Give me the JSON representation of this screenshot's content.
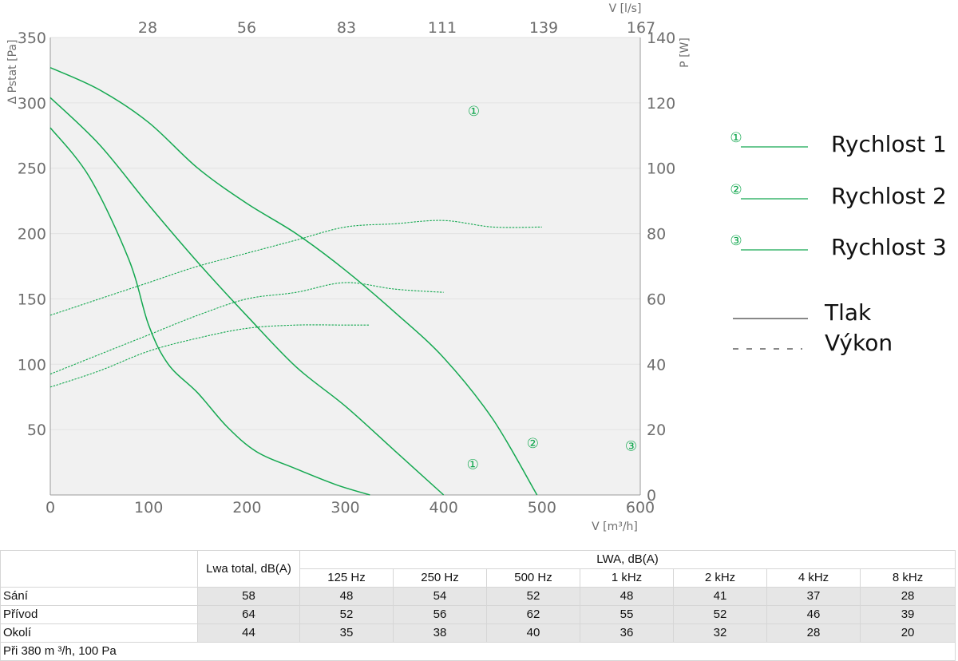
{
  "chart_data": {
    "type": "line",
    "x_axis": {
      "label": "V [m³/h]",
      "range": [
        0,
        600
      ],
      "ticks": [
        0,
        100,
        200,
        300,
        400,
        500,
        600
      ]
    },
    "x2_axis": {
      "label": "V [l/s]",
      "ticks": [
        "28",
        "56",
        "83",
        "111",
        "139",
        "167"
      ]
    },
    "y_axis": {
      "label": "Δ Pstat [Pa]",
      "range": [
        0,
        350
      ],
      "ticks": [
        50,
        100,
        150,
        200,
        250,
        300,
        350
      ]
    },
    "y2_axis": {
      "label": "P [W]",
      "range": [
        0,
        140
      ],
      "ticks": [
        0,
        20,
        40,
        60,
        80,
        100,
        120,
        140
      ]
    },
    "grid": true,
    "plot_background": "#f1f1f1",
    "series_color": "#14a850",
    "series": [
      {
        "name": "Rychlost 1",
        "kind": "pressure",
        "axis": "left",
        "label": "①",
        "x": [
          0,
          40,
          80,
          100,
          120,
          150,
          180,
          210,
          250,
          290,
          325
        ],
        "y": [
          281,
          243,
          180,
          130,
          100,
          78,
          52,
          33,
          20,
          8,
          0
        ]
      },
      {
        "name": "Rychlost 2",
        "kind": "pressure",
        "axis": "left",
        "label": "②",
        "x": [
          0,
          50,
          100,
          150,
          200,
          250,
          300,
          350,
          400
        ],
        "y": [
          304,
          268,
          222,
          178,
          137,
          98,
          68,
          34,
          0
        ]
      },
      {
        "name": "Rychlost 3",
        "kind": "pressure",
        "axis": "left",
        "label": "③",
        "x": [
          0,
          50,
          100,
          150,
          200,
          250,
          300,
          350,
          400,
          450,
          495
        ],
        "y": [
          327,
          310,
          285,
          250,
          223,
          200,
          172,
          140,
          105,
          58,
          0
        ]
      },
      {
        "name": "Rychlost 1",
        "kind": "power",
        "axis": "right",
        "label": "①",
        "x": [
          0,
          50,
          100,
          150,
          200,
          250,
          300,
          325
        ],
        "y": [
          33,
          38,
          44,
          48,
          51,
          52,
          52,
          52
        ]
      },
      {
        "name": "Rychlost 2",
        "kind": "power",
        "axis": "right",
        "label": "②",
        "x": [
          0,
          50,
          100,
          150,
          200,
          250,
          300,
          350,
          400
        ],
        "y": [
          37,
          43,
          49,
          55,
          60,
          62,
          65,
          63,
          62
        ]
      },
      {
        "name": "Rychlost 3",
        "kind": "power",
        "axis": "right",
        "label": "③",
        "x": [
          0,
          50,
          100,
          150,
          200,
          250,
          300,
          350,
          400,
          450,
          500
        ],
        "y": [
          55,
          60,
          65,
          70,
          74,
          78,
          82,
          83,
          84,
          82,
          82
        ]
      }
    ],
    "curve_labels": [
      {
        "text": "①",
        "series": 0,
        "x": 316,
        "y": 20
      },
      {
        "text": "②",
        "series": 1,
        "x": 377,
        "y": 36
      },
      {
        "text": "③",
        "series": 2,
        "x": 477,
        "y": 34
      },
      {
        "text": "①",
        "series": 3,
        "x": 317,
        "y": 116
      },
      {
        "text": "②",
        "series": 4,
        "x": 382,
        "y": 167
      },
      {
        "text": "③",
        "series": 5,
        "x": 485,
        "y": 216
      }
    ]
  },
  "legend": {
    "entries": [
      {
        "marker": "①",
        "label": "Rychlost 1"
      },
      {
        "marker": "②",
        "label": "Rychlost 2"
      },
      {
        "marker": "③",
        "label": "Rychlost 3"
      }
    ],
    "tlak": "Tlak",
    "vykon": "Výkon"
  },
  "table": {
    "header_total": "Lwa total, dB(A)",
    "header_lwa": "LWA, dB(A)",
    "bands": [
      "125 Hz",
      "250 Hz",
      "500 Hz",
      "1 kHz",
      "2 kHz",
      "4 kHz",
      "8 kHz"
    ],
    "rows": [
      {
        "label": "Sání",
        "total": "58",
        "values": [
          "48",
          "54",
          "52",
          "48",
          "41",
          "37",
          "28"
        ]
      },
      {
        "label": "Přívod",
        "total": "64",
        "values": [
          "52",
          "56",
          "62",
          "55",
          "52",
          "46",
          "39"
        ]
      },
      {
        "label": "Okolí",
        "total": "44",
        "values": [
          "35",
          "38",
          "40",
          "36",
          "32",
          "28",
          "20"
        ]
      }
    ],
    "footnote": "Při 380 m ³/h, 100 Pa"
  }
}
